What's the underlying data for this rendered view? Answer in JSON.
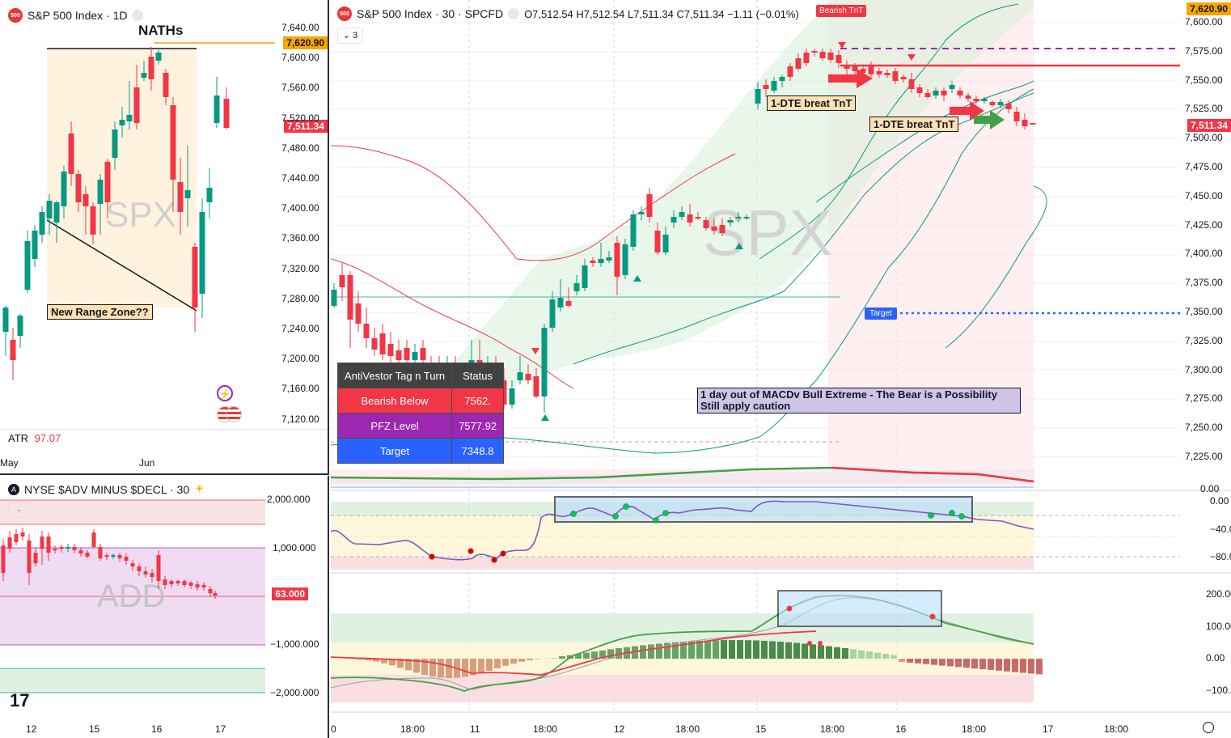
{
  "left_chart": {
    "title": "S&P 500 Index · 1D",
    "watermark": "SPX",
    "nath_label": "NATHs",
    "range_label": "New Range Zone??",
    "price_marker_high": "7,620.90",
    "price_marker_last": "7,511.34",
    "y_ticks": [
      "7,640.00",
      "7,600.00",
      "7,560.00",
      "7,520.00",
      "7,480.00",
      "7,440.00",
      "7,400.00",
      "7,360.00",
      "7,320.00",
      "7,280.00",
      "7,240.00",
      "7,200.00",
      "7,160.00",
      "7,120.00"
    ],
    "atr_label": "ATR",
    "atr_value": "97.07",
    "x_ticks": [
      "May",
      "Jun"
    ]
  },
  "add_chart": {
    "title": "NYSE $ADV MINUS $DECL · 30",
    "watermark": "ADD",
    "last_value": "63.000",
    "y_ticks": [
      "2,000.000",
      "1,000.000",
      "−1,000.000",
      "−2,000.000"
    ],
    "x_ticks": [
      "12",
      "15",
      "16",
      "17"
    ]
  },
  "main_chart": {
    "title": "S&P 500 Index · 30 · SPCFD",
    "ohlc": "O7,512.54 H7,512.54 L7,511.34 C7,511.34 −1.11 (−0.01%)",
    "collapse_count": "3",
    "watermark": "SPX",
    "bearish_flag": "Bearish TnT",
    "target_flag": "Target",
    "dte_label_1": "1-DTE breat TnT",
    "dte_label_2": "1-DTE breat TnT",
    "macd_note_line1": "1 day out of MACDv Bull Extreme - The Bear is a Possibility",
    "macd_note_line2": "Still apply caution",
    "price_marker_high": "7,620.90",
    "price_marker_last": "7,511.34",
    "y_ticks": [
      "7,600.00",
      "7,575.00",
      "7,550.00",
      "7,525.00",
      "7,500.00",
      "7,475.00",
      "7,450.00",
      "7,425.00",
      "7,400.00",
      "7,375.00",
      "7,350.00",
      "7,325.00",
      "7,300.00",
      "7,275.00",
      "7,250.00",
      "7,225.00"
    ],
    "osc_ticks": [
      "0.00",
      "−40.00",
      "−80.00"
    ],
    "macd_ticks": [
      "200.00",
      "100.00",
      "0.00",
      "−100.00"
    ],
    "strip_tick": "0.00",
    "x_ticks": [
      "0",
      "18:00",
      "11",
      "18:00",
      "12",
      "18:00",
      "15",
      "18:00",
      "16",
      "18:00",
      "17",
      "18:00"
    ]
  },
  "antivestor_table": {
    "header": [
      "AntiVestor Tag n Turn",
      "Status"
    ],
    "rows": [
      {
        "label": "Bearish Below",
        "value": "7562.",
        "color": "#f23645"
      },
      {
        "label": "PFZ Level",
        "value": "7577.92",
        "color": "#9c27b0"
      },
      {
        "label": "Target",
        "value": "7348.8",
        "color": "#2962ff"
      }
    ]
  },
  "colors": {
    "up": "#089981",
    "down": "#f23645",
    "accent_orange": "#f7a600",
    "target_blue": "#2962ff"
  }
}
